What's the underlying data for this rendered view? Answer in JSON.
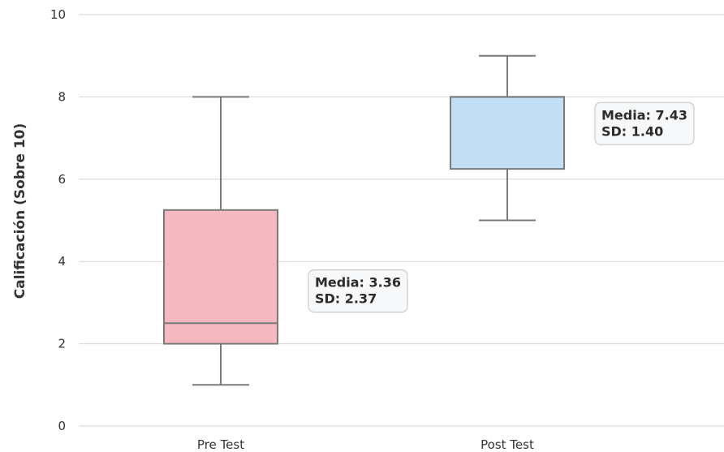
{
  "chart_data": {
    "type": "box",
    "title": "",
    "xlabel": "",
    "ylabel": "Calificación (Sobre 10)",
    "ylim": [
      0,
      10
    ],
    "yticks": [
      0,
      2,
      4,
      6,
      8,
      10
    ],
    "grid": "horizontal",
    "categories": [
      "Pre Test",
      "Post Test"
    ],
    "boxes": [
      {
        "category": "Pre Test",
        "whisker_low": 1,
        "q1": 2,
        "median": 2.5,
        "q3": 5.25,
        "whisker_high": 8,
        "color": "#f5b8c0",
        "annotation": {
          "line1": "Media: 3.36",
          "line2": "SD: 2.37"
        }
      },
      {
        "category": "Post Test",
        "whisker_low": 5,
        "q1": 6.25,
        "median": 8,
        "q3": 8,
        "whisker_high": 9,
        "color": "#c2dff5",
        "annotation": {
          "line1": "Media: 7.43",
          "line2": "SD: 1.40"
        }
      }
    ]
  },
  "colors": {
    "box_edge": "#7a7a7a",
    "grid": "#d6d6d6",
    "annotation_bg": "#f6f8fa",
    "annotation_border": "#c8ccd0"
  }
}
